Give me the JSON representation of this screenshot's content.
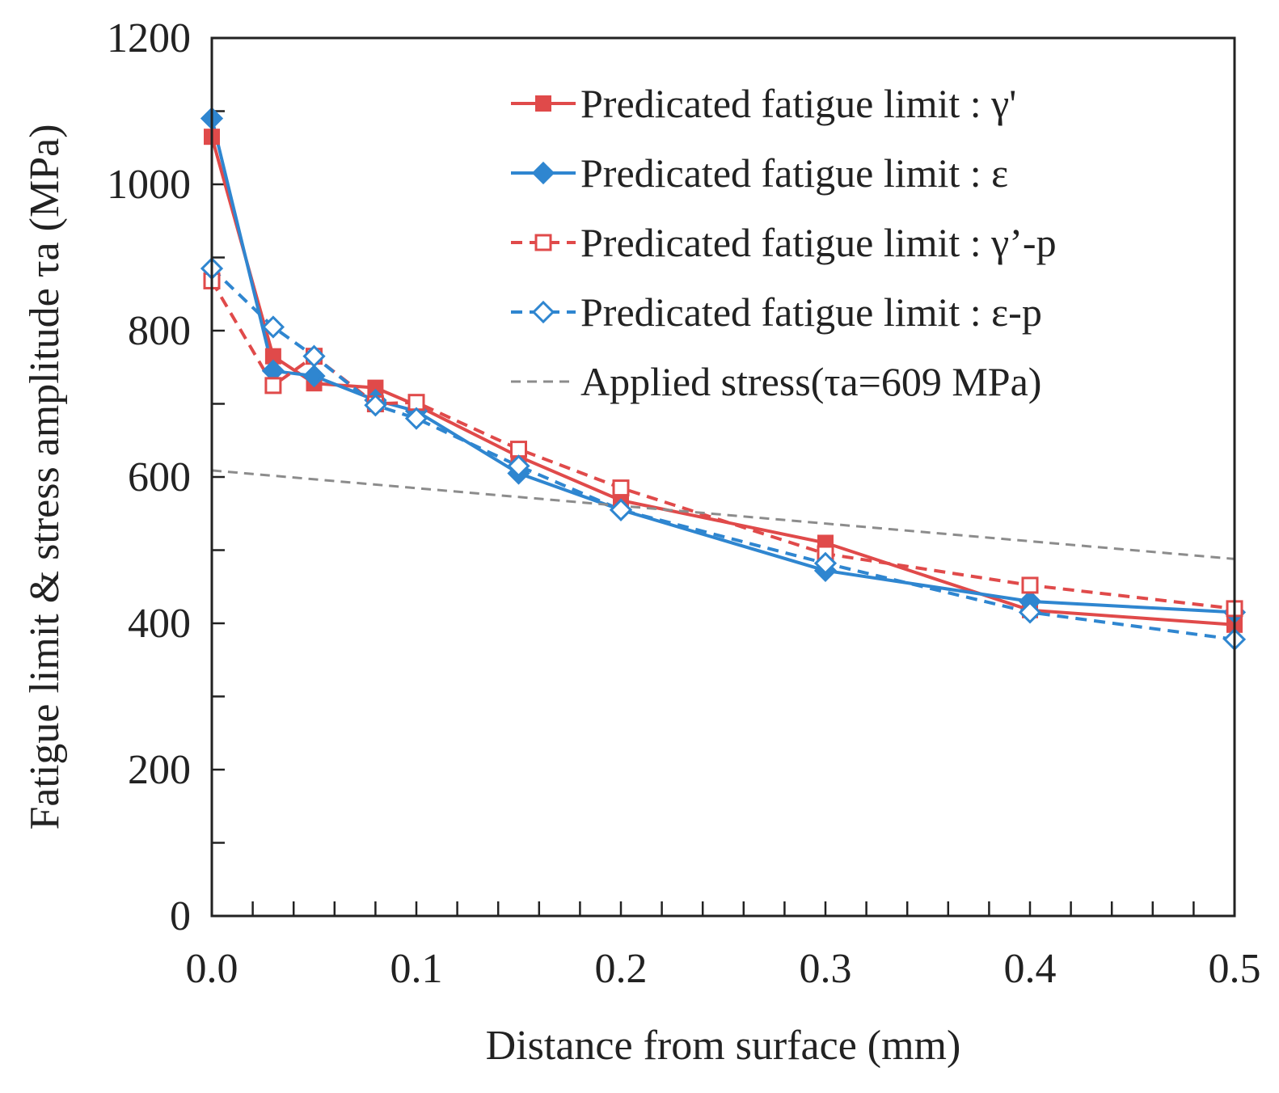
{
  "chart_data": {
    "type": "line",
    "title": "",
    "xlabel": "Distance from surface (mm)",
    "ylabel": "Fatigue limit & stress amplitude τa (MPa)",
    "xlim": [
      0,
      0.5
    ],
    "ylim": [
      0,
      1200
    ],
    "x_ticks": [
      {
        "value": 0.0,
        "label": "0.0"
      },
      {
        "value": 0.1,
        "label": "0.1"
      },
      {
        "value": 0.2,
        "label": "0.2"
      },
      {
        "value": 0.3,
        "label": "0.3"
      },
      {
        "value": 0.4,
        "label": "0.4"
      },
      {
        "value": 0.5,
        "label": "0.5"
      }
    ],
    "x_minor_step": 0.02,
    "y_ticks": [
      {
        "value": 0,
        "label": "0"
      },
      {
        "value": 200,
        "label": "200"
      },
      {
        "value": 400,
        "label": "400"
      },
      {
        "value": 600,
        "label": "600"
      },
      {
        "value": 800,
        "label": "800"
      },
      {
        "value": 1000,
        "label": "1000"
      },
      {
        "value": 1200,
        "label": "1200"
      }
    ],
    "y_minor_step": 100,
    "grid": false,
    "legend_position": "top-right",
    "series": [
      {
        "name": "Predicated fatigue limit : γ'",
        "color": "#e04a4a",
        "line_style": "solid",
        "marker": "square-filled",
        "x": [
          0.0,
          0.03,
          0.05,
          0.08,
          0.1,
          0.15,
          0.2,
          0.3,
          0.4,
          0.5
        ],
        "y": [
          1065,
          765,
          728,
          722,
          698,
          628,
          568,
          510,
          418,
          398
        ]
      },
      {
        "name": "Predicated fatigue limit : ε",
        "color": "#2f86d0",
        "line_style": "solid",
        "marker": "diamond-filled",
        "x": [
          0.0,
          0.03,
          0.05,
          0.08,
          0.1,
          0.15,
          0.2,
          0.3,
          0.4,
          0.5
        ],
        "y": [
          1090,
          745,
          738,
          705,
          690,
          605,
          555,
          472,
          430,
          415
        ]
      },
      {
        "name": "Predicated fatigue limit : γ’-p",
        "color": "#e04a4a",
        "line_style": "dashed",
        "marker": "square-open",
        "x": [
          0.0,
          0.03,
          0.05,
          0.08,
          0.1,
          0.15,
          0.2,
          0.3,
          0.4,
          0.5
        ],
        "y": [
          868,
          725,
          765,
          700,
          702,
          638,
          585,
          495,
          452,
          420
        ]
      },
      {
        "name": "Predicated fatigue limit : ε-p",
        "color": "#2f86d0",
        "line_style": "dashed",
        "marker": "diamond-open",
        "x": [
          0.0,
          0.03,
          0.05,
          0.08,
          0.1,
          0.15,
          0.2,
          0.3,
          0.4,
          0.5
        ],
        "y": [
          885,
          805,
          765,
          698,
          680,
          615,
          555,
          482,
          415,
          378
        ]
      },
      {
        "name": "Applied stress(τa=609 MPa)",
        "color": "#8c8c8c",
        "line_style": "dashed",
        "marker": "none",
        "x": [
          0.0,
          0.5
        ],
        "y": [
          609,
          488
        ]
      }
    ]
  }
}
